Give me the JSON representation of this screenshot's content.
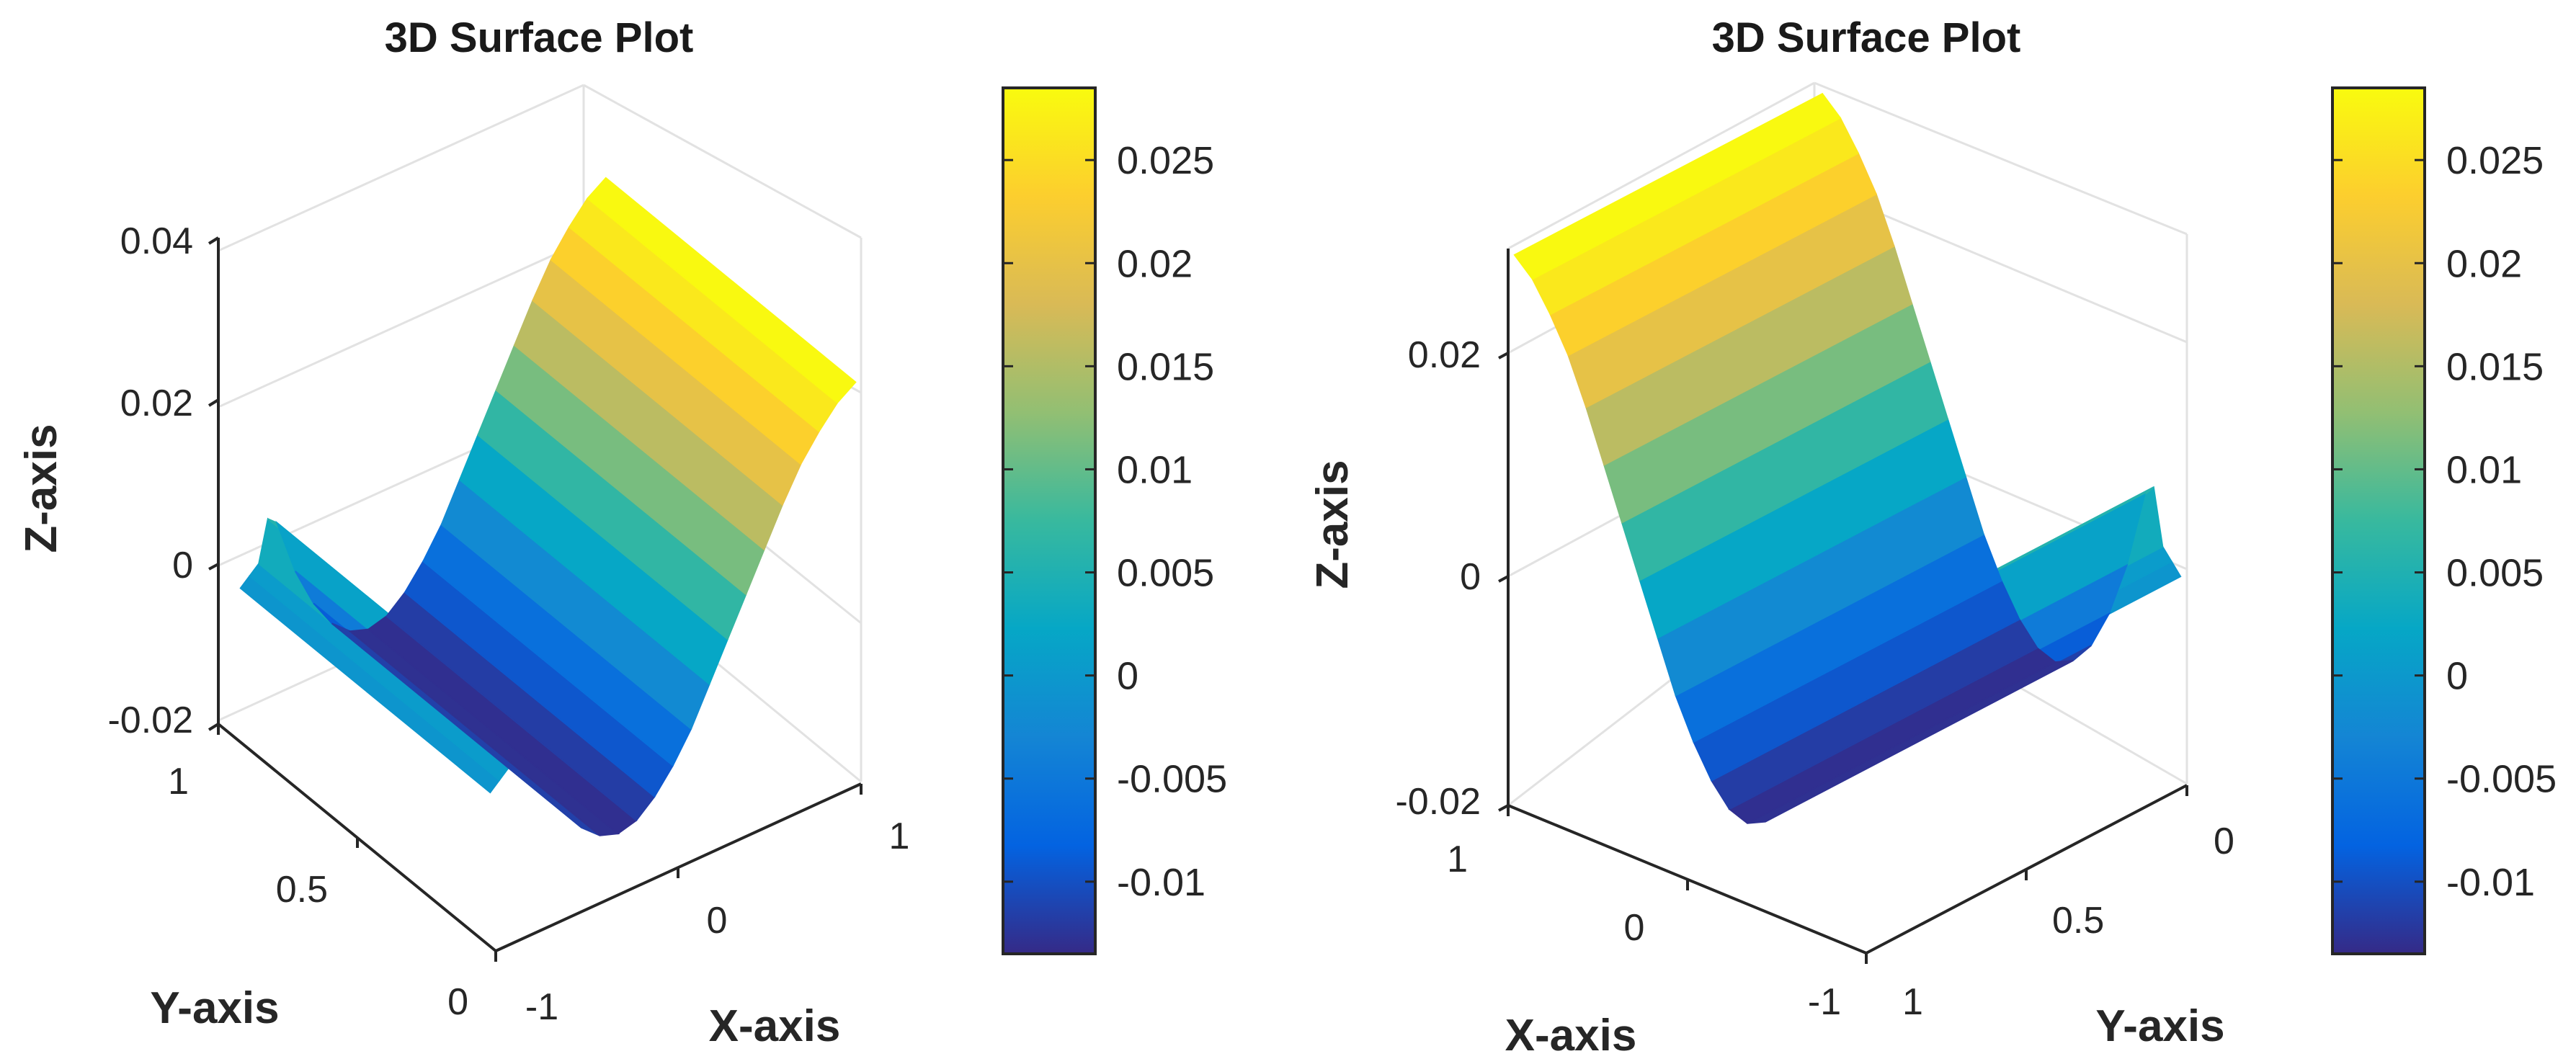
{
  "chart_data": [
    {
      "type": "surface3d",
      "title": "3D Surface Plot",
      "xlabel": "X-axis",
      "ylabel": "Y-axis",
      "zlabel": "Z-axis",
      "view": "x-axis toward front-right, y-axis toward front-left",
      "xlim": [
        -1,
        1
      ],
      "ylim": [
        0,
        1
      ],
      "zlim": [
        -0.02,
        0.04
      ],
      "xticks": [
        "-1",
        "0",
        "1"
      ],
      "yticks": [
        "0",
        "0.5",
        "1"
      ],
      "zticks": [
        "-0.02",
        "0",
        "0.02",
        "0.04"
      ],
      "surface": {
        "x": [
          -1,
          -0.95,
          -0.9,
          -0.85,
          -0.8,
          -0.7,
          -0.6,
          -0.5,
          -0.4,
          -0.3,
          -0.2,
          -0.1,
          0,
          0.1,
          0.2,
          0.3,
          0.4,
          0.5,
          0.6,
          0.7,
          0.8,
          0.9,
          1
        ],
        "z": [
          -0.001,
          0.0,
          0.001,
          0.006,
          0.005,
          -0.002,
          -0.007,
          -0.0105,
          -0.0125,
          -0.0133,
          -0.0127,
          -0.0108,
          -0.008,
          -0.0045,
          0.0,
          0.0045,
          0.009,
          0.0135,
          0.018,
          0.022,
          0.025,
          0.0275,
          0.029
        ],
        "y_dependence": "constant"
      },
      "colorbar": {
        "colormap": "parula",
        "range": [
          -0.0135,
          0.0285
        ],
        "ticks": [
          "0.025",
          "0.02",
          "0.015",
          "0.01",
          "0.005",
          "0",
          "-0.005",
          "-0.01"
        ],
        "tick_values": [
          0.025,
          0.02,
          0.015,
          0.01,
          0.005,
          0,
          -0.005,
          -0.01
        ]
      }
    },
    {
      "type": "surface3d",
      "title": "3D Surface Plot",
      "xlabel": "X-axis",
      "ylabel": "Y-axis",
      "zlabel": "Z-axis",
      "view": "x-axis toward front-left, y-axis toward front-right",
      "xlim": [
        -1,
        1
      ],
      "ylim": [
        0,
        1
      ],
      "zlim": [
        -0.02,
        0.03
      ],
      "xticks": [
        "-1",
        "0",
        "1"
      ],
      "yticks": [
        "0",
        "0.5",
        "1"
      ],
      "zticks": [
        "-0.02",
        "0",
        "0.02"
      ],
      "surface": {
        "x": [
          -1,
          -0.95,
          -0.9,
          -0.85,
          -0.8,
          -0.7,
          -0.6,
          -0.5,
          -0.4,
          -0.3,
          -0.2,
          -0.1,
          0,
          0.1,
          0.2,
          0.3,
          0.4,
          0.5,
          0.6,
          0.7,
          0.8,
          0.9,
          1
        ],
        "z": [
          -0.001,
          0.0,
          0.001,
          0.006,
          0.005,
          -0.002,
          -0.007,
          -0.0105,
          -0.0125,
          -0.0133,
          -0.0127,
          -0.0108,
          -0.008,
          -0.0045,
          0.0,
          0.0045,
          0.009,
          0.0135,
          0.018,
          0.022,
          0.025,
          0.0275,
          0.029
        ],
        "y_dependence": "constant"
      },
      "colorbar": {
        "colormap": "parula",
        "range": [
          -0.0135,
          0.0285
        ],
        "ticks": [
          "0.025",
          "0.02",
          "0.015",
          "0.01",
          "0.005",
          "0",
          "-0.005",
          "-0.01"
        ],
        "tick_values": [
          0.025,
          0.02,
          0.015,
          0.01,
          0.005,
          0,
          -0.005,
          -0.01
        ]
      }
    }
  ],
  "colors": {
    "parula": [
      "#352a87",
      "#0363e1",
      "#1485d4",
      "#06a7c6",
      "#38b99e",
      "#92bf73",
      "#d9ba56",
      "#fcce2e",
      "#f9fb0e"
    ],
    "axis": "#262626",
    "grid": "#e2e2e2"
  }
}
